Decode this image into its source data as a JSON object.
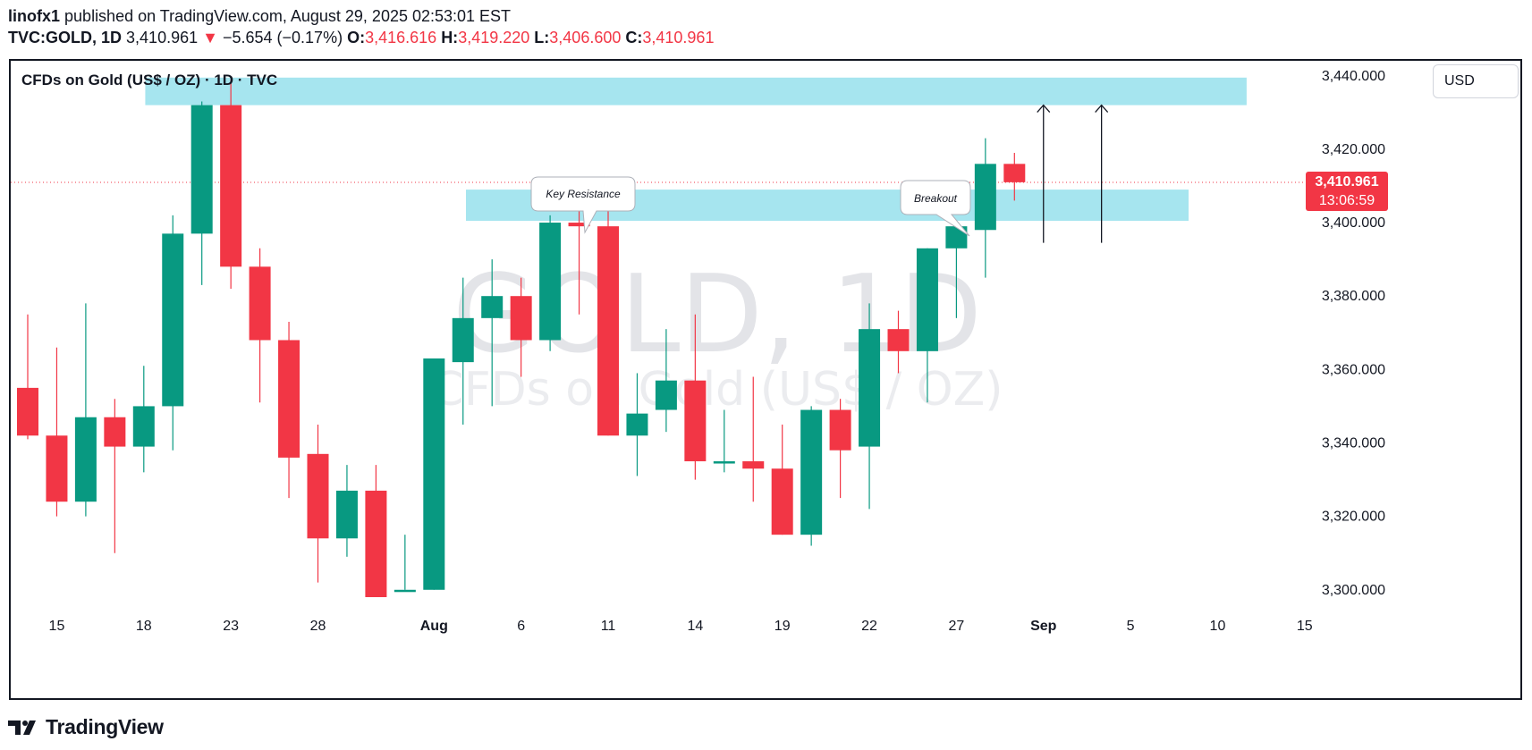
{
  "header": {
    "author": "linofx1",
    "published": "published on TradingView.com, August 29, 2025 02:53:01 EST",
    "symbol": "TVC:GOLD, 1D",
    "last": "3,410.961",
    "change_arrow": "▼",
    "change": "−5.654 (−0.17%)",
    "o_label": "O:",
    "o_value": "3,416.616",
    "h_label": "H:",
    "h_value": "3,419.220",
    "l_label": "L:",
    "l_value": "3,406.600",
    "c_label": "C:",
    "c_value": "3,410.961"
  },
  "chart_title": "CFDs on Gold (US$ / OZ) · 1D · TVC",
  "currency_button": "USD",
  "watermark": {
    "big": "GOLD, 1D",
    "small": "CFDs on Gold (US$ / OZ)"
  },
  "price_label": {
    "price": "3,410.961",
    "countdown": "13:06:59"
  },
  "annotations": {
    "key_resistance": "Key Resistance",
    "breakout": "Breakout"
  },
  "footer": {
    "brand": "TradingView"
  },
  "colors": {
    "up": "#089981",
    "down": "#f23645",
    "zone": "#a6e5ef",
    "text": "#131722"
  },
  "chart_data": {
    "type": "candlestick",
    "title": "CFDs on Gold (US$ / OZ) · 1D · TVC",
    "ylim": [
      3298,
      3447
    ],
    "y_ticks": [
      3300,
      3320,
      3340,
      3360,
      3380,
      3400,
      3420,
      3440
    ],
    "y_tick_labels": [
      "3,300.000",
      "3,320.000",
      "3,340.000",
      "3,360.000",
      "3,380.000",
      "3,400.000",
      "3,420.000",
      "3,440.000"
    ],
    "x_labels": [
      {
        "label": "15",
        "bar": 1
      },
      {
        "label": "18",
        "bar": 4
      },
      {
        "label": "23",
        "bar": 7
      },
      {
        "label": "28",
        "bar": 10
      },
      {
        "label": "Aug",
        "bar": 14
      },
      {
        "label": "6",
        "bar": 17
      },
      {
        "label": "11",
        "bar": 20
      },
      {
        "label": "14",
        "bar": 23
      },
      {
        "label": "19",
        "bar": 26
      },
      {
        "label": "22",
        "bar": 29
      },
      {
        "label": "27",
        "bar": 32
      },
      {
        "label": "Sep",
        "bar": 35
      },
      {
        "label": "5",
        "bar": 38
      },
      {
        "label": "10",
        "bar": 41
      },
      {
        "label": "15",
        "bar": 44
      }
    ],
    "candles": [
      {
        "o": 3355,
        "h": 3375,
        "l": 3341,
        "c": 3342
      },
      {
        "o": 3342,
        "h": 3366,
        "l": 3320,
        "c": 3324
      },
      {
        "o": 3324,
        "h": 3378,
        "l": 3320,
        "c": 3347
      },
      {
        "o": 3347,
        "h": 3352,
        "l": 3310,
        "c": 3339
      },
      {
        "o": 3339,
        "h": 3361,
        "l": 3332,
        "c": 3350
      },
      {
        "o": 3350,
        "h": 3402,
        "l": 3338,
        "c": 3397
      },
      {
        "o": 3397,
        "h": 3433,
        "l": 3383,
        "c": 3432
      },
      {
        "o": 3432,
        "h": 3439,
        "l": 3382,
        "c": 3388
      },
      {
        "o": 3388,
        "h": 3393,
        "l": 3351,
        "c": 3368
      },
      {
        "o": 3368,
        "h": 3373,
        "l": 3325,
        "c": 3336
      },
      {
        "o": 3337,
        "h": 3345,
        "l": 3302,
        "c": 3314
      },
      {
        "o": 3314,
        "h": 3334,
        "l": 3309,
        "c": 3327
      },
      {
        "o": 3327,
        "h": 3334,
        "l": 3298,
        "c": 3298
      },
      {
        "o": 3300,
        "h": 3315,
        "l": 3300,
        "c": 3300
      },
      {
        "o": 3300,
        "h": 3363,
        "l": 3300,
        "c": 3363
      },
      {
        "o": 3362,
        "h": 3385,
        "l": 3345,
        "c": 3374
      },
      {
        "o": 3374,
        "h": 3390,
        "l": 3350,
        "c": 3380
      },
      {
        "o": 3380,
        "h": 3385,
        "l": 3358,
        "c": 3368
      },
      {
        "o": 3368,
        "h": 3402,
        "l": 3365,
        "c": 3400
      },
      {
        "o": 3400,
        "h": 3409,
        "l": 3375,
        "c": 3399
      },
      {
        "o": 3399,
        "h": 3405,
        "l": 3342,
        "c": 3342
      },
      {
        "o": 3342,
        "h": 3359,
        "l": 3331,
        "c": 3348
      },
      {
        "o": 3349,
        "h": 3371,
        "l": 3343,
        "c": 3357
      },
      {
        "o": 3357,
        "h": 3375,
        "l": 3330,
        "c": 3335
      },
      {
        "o": 3335,
        "h": 3349,
        "l": 3332,
        "c": 3335
      },
      {
        "o": 3335,
        "h": 3358,
        "l": 3324,
        "c": 3333
      },
      {
        "o": 3333,
        "h": 3345,
        "l": 3315,
        "c": 3315
      },
      {
        "o": 3315,
        "h": 3350,
        "l": 3312,
        "c": 3349
      },
      {
        "o": 3349,
        "h": 3352,
        "l": 3325,
        "c": 3338
      },
      {
        "o": 3339,
        "h": 3378,
        "l": 3322,
        "c": 3371
      },
      {
        "o": 3371,
        "h": 3376,
        "l": 3359,
        "c": 3365
      },
      {
        "o": 3365,
        "h": 3393,
        "l": 3351,
        "c": 3393
      },
      {
        "o": 3393,
        "h": 3400,
        "l": 3374,
        "c": 3399
      },
      {
        "o": 3398,
        "h": 3423,
        "l": 3385,
        "c": 3416
      },
      {
        "o": 3416,
        "h": 3419,
        "l": 3406,
        "c": 3411
      }
    ],
    "zones": [
      {
        "name": "upper-resistance",
        "from": 3432,
        "to": 3439.5,
        "bar_start": 4.05,
        "bar_end": 42.0
      },
      {
        "name": "key-resistance",
        "from": 3400.5,
        "to": 3409,
        "bar_start": 15.1,
        "bar_end": 40.0
      }
    ],
    "last_price": 3410.961,
    "arrows": [
      {
        "bar": 35.0,
        "from": 3394.5,
        "to": 3432
      },
      {
        "bar": 37.0,
        "from": 3394.5,
        "to": 3432
      }
    ]
  }
}
